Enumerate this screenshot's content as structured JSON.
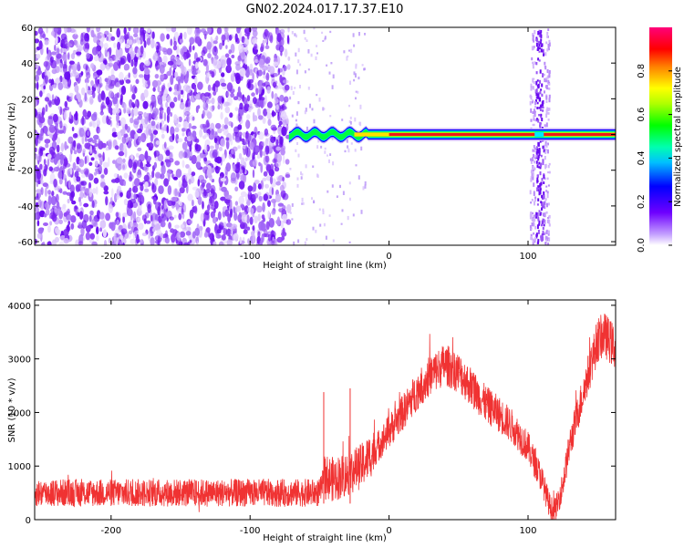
{
  "title": "GN02.2024.017.17.37.E10",
  "colors": {
    "snr_line": "#f03232",
    "scatter_purple": "#7a1ef0"
  },
  "chart_data": [
    {
      "type": "heatmap",
      "xlabel": "Height of straight line (km)",
      "ylabel": "Frequency (Hz)",
      "xlim": [
        -255,
        163
      ],
      "ylim": [
        -62,
        60
      ],
      "x_ticks": [
        "-200",
        "-100",
        "0",
        "100"
      ],
      "y_ticks": [
        "60",
        "40",
        "20",
        "0",
        "-20",
        "-40",
        "-60"
      ],
      "colorbar": {
        "label": "Normalized spectral amplitude",
        "range": [
          0,
          1
        ],
        "ticks": [
          "0.0",
          "0.2",
          "0.4",
          "0.6",
          "0.8"
        ],
        "colormap": "rainbow"
      },
      "features": {
        "noise_region_x": [
          -255,
          -72
        ],
        "signal_band_x": [
          -72,
          163
        ],
        "signal_frequency_hz": 0,
        "vertical_stripe_x": 108
      }
    },
    {
      "type": "line",
      "xlabel": "Height of straight line (km)",
      "ylabel": "SNR (10 * v/v)",
      "xlim": [
        -255,
        163
      ],
      "ylim": [
        0,
        4100
      ],
      "x_ticks": [
        "-200",
        "-100",
        "0",
        "100"
      ],
      "y_ticks": [
        "0",
        "1000",
        "2000",
        "3000",
        "4000"
      ],
      "series": [
        {
          "x": [
            -255,
            -200,
            -150,
            -100,
            -50,
            -46,
            -40,
            -30,
            -20,
            -10,
            0,
            10,
            20,
            30,
            40,
            50,
            60,
            70,
            80,
            90,
            100,
            110,
            115,
            118,
            120,
            125,
            130,
            140,
            150,
            155,
            163
          ],
          "values": [
            500,
            500,
            500,
            500,
            500,
            800,
            750,
            850,
            1000,
            1300,
            1650,
            2000,
            2400,
            2700,
            2900,
            2750,
            2450,
            2150,
            1950,
            1700,
            1350,
            750,
            300,
            150,
            200,
            650,
            1400,
            2400,
            3350,
            3450,
            3200
          ]
        }
      ]
    }
  ]
}
